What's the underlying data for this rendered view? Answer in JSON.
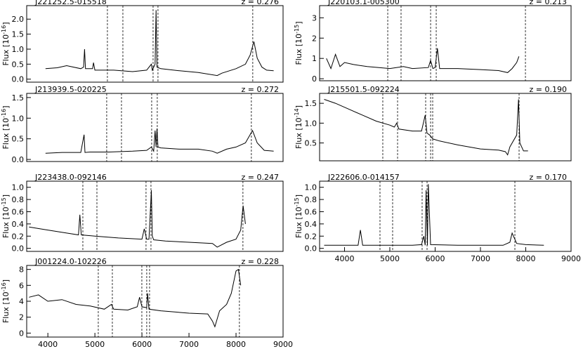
{
  "chart_data": [
    {
      "type": "line",
      "name": "J221252.5-015518",
      "redshift": "z = 0.276",
      "ylabel": "Flux [10",
      "ylabel_exponent": "-16",
      "ylabel_close": "]",
      "color": "#000000",
      "xlim": [
        3550,
        9000
      ],
      "ylim": [
        -0.1,
        2.45
      ],
      "yticks": [
        {
          "value": 0,
          "label": "0.0"
        },
        0.5,
        {
          "value": 1,
          "label": "1.0"
        },
        1.5,
        {
          "value": 2,
          "label": "2.0"
        }
      ],
      "vlines": [
        5266,
        5595,
        6237,
        6341,
        8356
      ],
      "x": [
        3950,
        4200,
        4400,
        4700,
        4760,
        4780,
        4800,
        4950,
        4970,
        5000,
        5400,
        5800,
        6100,
        6200,
        6220,
        6280,
        6300,
        6320,
        6400,
        6800,
        7200,
        7600,
        7700,
        8000,
        8200,
        8300,
        8380,
        8450,
        8550,
        8650,
        8800
      ],
      "values": [
        0.35,
        0.38,
        0.45,
        0.35,
        0.4,
        1.0,
        0.35,
        0.35,
        0.55,
        0.3,
        0.3,
        0.25,
        0.3,
        0.5,
        0.3,
        0.5,
        2.3,
        0.4,
        0.35,
        0.28,
        0.22,
        0.12,
        0.2,
        0.35,
        0.5,
        0.8,
        1.25,
        0.7,
        0.4,
        0.3,
        0.28
      ]
    },
    {
      "type": "line",
      "name": "J213939.5-020225",
      "redshift": "z = 0.272",
      "ylabel": "Flux [10",
      "ylabel_exponent": "-16",
      "ylabel_close": "]",
      "color": "#000000",
      "xlim": [
        3550,
        9000
      ],
      "ylim": [
        -0.05,
        1.6
      ],
      "yticks": [
        {
          "value": 0,
          "label": "0.0"
        },
        0.5,
        {
          "value": 1,
          "label": "1.0"
        },
        1.5
      ],
      "vlines": [
        5251,
        5565,
        6207,
        6326,
        8326
      ],
      "x": [
        3950,
        4300,
        4700,
        4770,
        4790,
        4900,
        5300,
        5800,
        6100,
        6200,
        6250,
        6280,
        6300,
        6320,
        6340,
        6400,
        6800,
        7200,
        7500,
        7600,
        7800,
        8000,
        8200,
        8300,
        8350,
        8450,
        8600,
        8800
      ],
      "values": [
        0.15,
        0.17,
        0.17,
        0.6,
        0.17,
        0.18,
        0.18,
        0.2,
        0.22,
        0.3,
        0.2,
        0.7,
        0.3,
        0.75,
        0.3,
        0.28,
        0.25,
        0.25,
        0.2,
        0.15,
        0.25,
        0.3,
        0.4,
        0.6,
        0.7,
        0.4,
        0.22,
        0.2
      ]
    },
    {
      "type": "line",
      "name": "J223438.0-092146",
      "redshift": "z = 0.247",
      "ylabel": "Flux [10",
      "ylabel_exponent": "-15",
      "ylabel_close": "]",
      "color": "#000000",
      "xlim": [
        3550,
        9000
      ],
      "ylim": [
        -0.05,
        1.1
      ],
      "yticks": [
        {
          "value": 0,
          "label": "0.0"
        },
        0.2,
        0.4,
        0.6,
        0.8,
        {
          "value": 1,
          "label": "1.0"
        }
      ],
      "vlines": [
        4744,
        5043,
        6087,
        6192,
        8147
      ],
      "x": [
        3600,
        4000,
        4400,
        4650,
        4680,
        4710,
        5000,
        5500,
        6000,
        6050,
        6100,
        6150,
        6200,
        6220,
        6250,
        6500,
        7000,
        7500,
        7600,
        7800,
        8000,
        8100,
        8150,
        8200
      ],
      "values": [
        0.35,
        0.3,
        0.25,
        0.22,
        0.55,
        0.22,
        0.2,
        0.17,
        0.15,
        0.32,
        0.15,
        0.15,
        0.95,
        0.2,
        0.14,
        0.12,
        0.1,
        0.08,
        0.02,
        0.1,
        0.15,
        0.3,
        0.7,
        0.4
      ]
    },
    {
      "type": "line",
      "name": "J001224.0-102226",
      "redshift": "z = 0.228",
      "ylabel": "Flux [10",
      "ylabel_exponent": "-16",
      "ylabel_close": "]",
      "color": "#000000",
      "xlim": [
        3550,
        9000
      ],
      "ylim": [
        -0.5,
        8.5
      ],
      "xticks": [
        4000,
        5000,
        6000,
        7000,
        8000,
        9000
      ],
      "yticks": [
        0,
        2,
        4,
        6,
        8
      ],
      "vlines": [
        5072,
        5371,
        5998,
        6102,
        6162,
        8072
      ],
      "x": [
        3600,
        3800,
        4000,
        4300,
        4600,
        4900,
        5200,
        5300,
        5350,
        5400,
        5700,
        5900,
        5950,
        6000,
        6100,
        6120,
        6150,
        6400,
        7000,
        7400,
        7500,
        7550,
        7650,
        7800,
        7900,
        8000,
        8050,
        8100
      ],
      "values": [
        4.5,
        4.8,
        4.0,
        4.2,
        3.6,
        3.4,
        3.0,
        3.4,
        3.6,
        3.0,
        2.9,
        3.3,
        4.5,
        3.3,
        3.2,
        5.0,
        3.0,
        2.8,
        2.5,
        2.4,
        1.5,
        0.8,
        2.8,
        3.6,
        5.0,
        7.8,
        8.0,
        6.0
      ]
    },
    {
      "type": "line",
      "name": "J220103.1-005300",
      "redshift": "z = 0.213",
      "ylabel": "Flux [10",
      "ylabel_exponent": "-15",
      "ylabel_close": "]",
      "color": "#000000",
      "xlim": [
        3450,
        9000
      ],
      "ylim": [
        -0.1,
        3.6
      ],
      "yticks": [
        0,
        1,
        2,
        3
      ],
      "vlines": [
        4954,
        5248,
        5900,
        6024,
        7993
      ],
      "x": [
        3600,
        3700,
        3800,
        3900,
        4000,
        4200,
        4500,
        5000,
        5300,
        5500,
        5850,
        5900,
        5950,
        6000,
        6050,
        6100,
        6500,
        7000,
        7400,
        7600,
        7700,
        7800,
        7850
      ],
      "values": [
        1.0,
        0.5,
        1.2,
        0.6,
        0.8,
        0.7,
        0.6,
        0.5,
        0.6,
        0.5,
        0.55,
        0.9,
        0.5,
        0.55,
        1.5,
        0.5,
        0.5,
        0.45,
        0.4,
        0.3,
        0.5,
        0.8,
        1.1
      ]
    },
    {
      "type": "line",
      "name": "J215501.5-092224",
      "redshift": "z = 0.190",
      "ylabel": "Flux [10",
      "ylabel_exponent": "-14",
      "ylabel_close": "]",
      "color": "#000000",
      "xlim": [
        3450,
        9000
      ],
      "ylim": [
        0.05,
        1.75
      ],
      "yticks": [
        0.5,
        {
          "value": 1,
          "label": "1.0"
        },
        1.5
      ],
      "vlines": [
        4845,
        5171,
        5791,
        5900,
        5946,
        7853
      ],
      "x": [
        3550,
        3800,
        4100,
        4400,
        4700,
        5000,
        5100,
        5150,
        5200,
        5500,
        5700,
        5780,
        5820,
        5880,
        5950,
        6100,
        6500,
        7000,
        7400,
        7550,
        7600,
        7650,
        7800,
        7840,
        7870,
        7950,
        8050
      ],
      "values": [
        1.6,
        1.5,
        1.35,
        1.2,
        1.05,
        0.95,
        0.9,
        1.0,
        0.85,
        0.8,
        0.8,
        1.2,
        0.75,
        0.7,
        0.6,
        0.55,
        0.45,
        0.35,
        0.32,
        0.28,
        0.2,
        0.4,
        0.7,
        1.6,
        0.5,
        0.3,
        0.3
      ]
    },
    {
      "type": "line",
      "name": "J222606.0-014157",
      "redshift": "z = 0.170",
      "ylabel": "Flux [10",
      "ylabel_exponent": "-15",
      "ylabel_close": "]",
      "color": "#000000",
      "xlim": [
        3450,
        9000
      ],
      "ylim": [
        -0.05,
        1.1
      ],
      "xticks": [
        4000,
        5000,
        6000,
        7000,
        8000,
        9000
      ],
      "yticks": [
        {
          "value": 0,
          "label": "0.0"
        },
        0.2,
        0.4,
        0.6,
        0.8,
        {
          "value": 1,
          "label": "1.0"
        }
      ],
      "vlines": [
        4783,
        5062,
        5713,
        5822,
        7760
      ],
      "x": [
        3550,
        4000,
        4300,
        4350,
        4400,
        5000,
        5500,
        5700,
        5750,
        5780,
        5800,
        5830,
        5850,
        5900,
        6500,
        7000,
        7500,
        7650,
        7700,
        7800,
        8000,
        8400
      ],
      "values": [
        0.05,
        0.05,
        0.05,
        0.3,
        0.05,
        0.05,
        0.05,
        0.06,
        0.2,
        0.05,
        0.95,
        0.05,
        1.05,
        0.06,
        0.05,
        0.05,
        0.05,
        0.1,
        0.25,
        0.08,
        0.06,
        0.05
      ]
    }
  ]
}
